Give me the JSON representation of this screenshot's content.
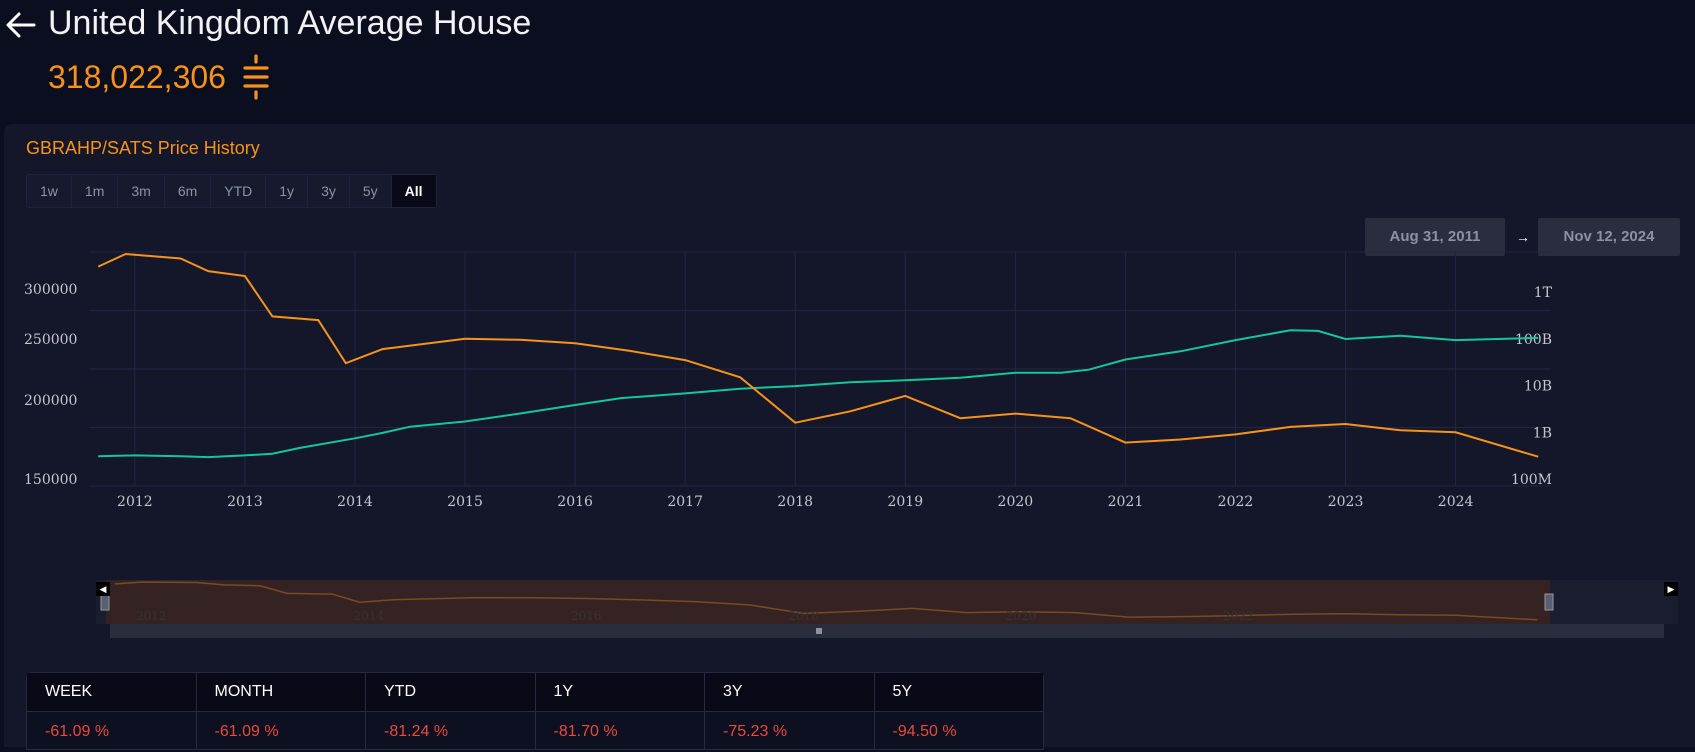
{
  "header": {
    "title": "United Kingdom Average House",
    "price": "318,022,306",
    "currency_icon": "sats-icon",
    "back_icon": "back-arrow-icon",
    "price_color": "#f7931a"
  },
  "chart_panel": {
    "title": "GBRAHP/SATS Price History",
    "ranges": [
      "1w",
      "1m",
      "3m",
      "6m",
      "YTD",
      "1y",
      "3y",
      "5y",
      "All"
    ],
    "active_range": "All",
    "date_from": "Aug 31, 2011",
    "date_to": "Nov 12, 2024",
    "date_arrow": "→"
  },
  "chart_data": {
    "type": "line",
    "title": "",
    "xlabel": "",
    "ylabel": "",
    "x_ticks": [
      "2012",
      "2013",
      "2014",
      "2015",
      "2016",
      "2017",
      "2018",
      "2019",
      "2020",
      "2021",
      "2022",
      "2023",
      "2024"
    ],
    "left_axis": {
      "ticks": [
        "300000",
        "250000",
        "200000",
        "150000"
      ],
      "scale": "log"
    },
    "right_axis": {
      "ticks": [
        "1T",
        "100B",
        "10B",
        "1B",
        "100M"
      ],
      "scale": "log"
    },
    "grid": true,
    "series": [
      {
        "color": "#14c79a",
        "axis": "left",
        "points": [
          [
            "2011-09",
            163000
          ],
          [
            "2012-01",
            163500
          ],
          [
            "2012-06",
            163000
          ],
          [
            "2012-09",
            162500
          ],
          [
            "2013-01",
            163500
          ],
          [
            "2013-04",
            164500
          ],
          [
            "2013-07",
            168000
          ],
          [
            "2014-01",
            174000
          ],
          [
            "2014-04",
            177500
          ],
          [
            "2014-07",
            181500
          ],
          [
            "2015-01",
            185000
          ],
          [
            "2015-07",
            190500
          ],
          [
            "2016-01",
            196500
          ],
          [
            "2016-06",
            201500
          ],
          [
            "2017-01",
            205000
          ],
          [
            "2017-07",
            208500
          ],
          [
            "2018-01",
            210500
          ],
          [
            "2018-07",
            213500
          ],
          [
            "2019-01",
            215000
          ],
          [
            "2019-07",
            217000
          ],
          [
            "2020-01",
            221000
          ],
          [
            "2020-06",
            221000
          ],
          [
            "2020-09",
            223500
          ],
          [
            "2021-01",
            232000
          ],
          [
            "2021-07",
            239000
          ],
          [
            "2022-01",
            249000
          ],
          [
            "2022-07",
            258000
          ],
          [
            "2022-10",
            257500
          ],
          [
            "2023-01",
            250000
          ],
          [
            "2023-07",
            253000
          ],
          [
            "2024-01",
            249000
          ],
          [
            "2024-10",
            251000
          ]
        ]
      },
      {
        "color": "#f7931a",
        "axis": "right",
        "points": [
          [
            "2011-09",
            3500000000000
          ],
          [
            "2011-12",
            6500000000000
          ],
          [
            "2012-06",
            5200000000000
          ],
          [
            "2012-09",
            2800000000000
          ],
          [
            "2013-01",
            2200000000000
          ],
          [
            "2013-04",
            300000000000
          ],
          [
            "2013-09",
            250000000000
          ],
          [
            "2013-12",
            30000000000
          ],
          [
            "2014-04",
            60000000000
          ],
          [
            "2015-01",
            100000000000
          ],
          [
            "2015-07",
            95000000000
          ],
          [
            "2016-01",
            80000000000
          ],
          [
            "2016-07",
            55000000000
          ],
          [
            "2017-01",
            35000000000
          ],
          [
            "2017-07",
            15000000000
          ],
          [
            "2018-01",
            1600000000
          ],
          [
            "2018-07",
            2800000000
          ],
          [
            "2019-01",
            6000000000
          ],
          [
            "2019-07",
            2000000000
          ],
          [
            "2020-01",
            2500000000
          ],
          [
            "2020-07",
            2000000000
          ],
          [
            "2021-01",
            600000000
          ],
          [
            "2021-07",
            700000000
          ],
          [
            "2022-01",
            900000000
          ],
          [
            "2022-07",
            1300000000
          ],
          [
            "2023-01",
            1500000000
          ],
          [
            "2023-07",
            1100000000
          ],
          [
            "2024-01",
            1000000000
          ],
          [
            "2024-10",
            300000000
          ]
        ]
      }
    ],
    "navigator_ticks": [
      "2012",
      "2014",
      "2016",
      "2018",
      "2020",
      "2022"
    ]
  },
  "returns": [
    {
      "label": "WEEK",
      "value": "-61.09 %"
    },
    {
      "label": "MONTH",
      "value": "-61.09 %"
    },
    {
      "label": "YTD",
      "value": "-81.24 %"
    },
    {
      "label": "1Y",
      "value": "-81.70 %"
    },
    {
      "label": "3Y",
      "value": "-75.23 %"
    },
    {
      "label": "5Y",
      "value": "-94.50 %"
    }
  ]
}
